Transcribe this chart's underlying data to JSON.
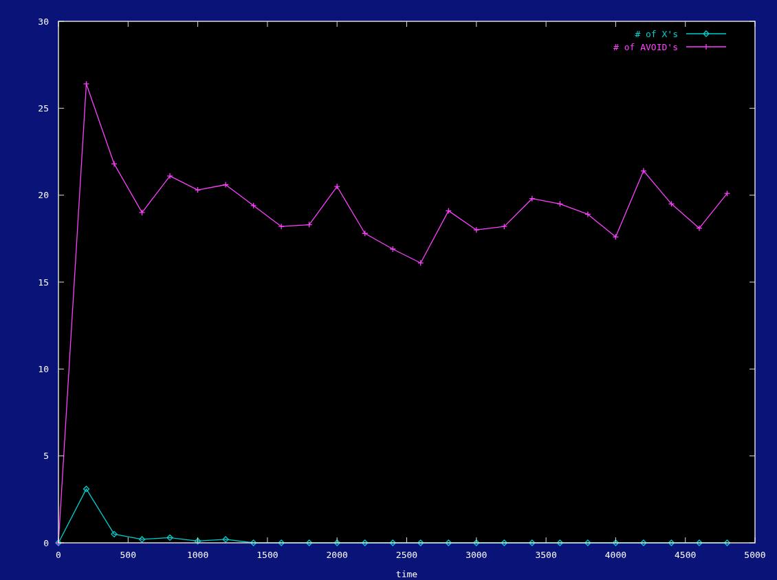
{
  "chart_data": {
    "type": "line",
    "xlabel": "time",
    "x": [
      0,
      200,
      400,
      600,
      800,
      1000,
      1200,
      1400,
      1600,
      1800,
      2000,
      2200,
      2400,
      2600,
      2800,
      3000,
      3200,
      3400,
      3600,
      3800,
      4000,
      4200,
      4400,
      4600,
      4800
    ],
    "series": [
      {
        "name": "# of X's",
        "color": "#00d0d0",
        "marker": "diamond",
        "values": [
          0,
          3.1,
          0.5,
          0.2,
          0.3,
          0.1,
          0.2,
          0,
          0,
          0,
          0,
          0,
          0,
          0,
          0,
          0,
          0,
          0,
          0,
          0,
          0,
          0,
          0,
          0,
          0
        ]
      },
      {
        "name": "# of AVOID's",
        "color": "#ff40ff",
        "marker": "cross",
        "values": [
          0,
          26.4,
          21.8,
          19.0,
          21.1,
          20.3,
          20.6,
          19.4,
          18.2,
          18.3,
          20.5,
          17.8,
          16.9,
          16.1,
          19.1,
          18.0,
          18.2,
          19.8,
          19.5,
          18.9,
          17.6,
          21.4,
          19.5,
          18.1,
          20.1
        ]
      }
    ],
    "xlim": [
      0,
      5000
    ],
    "xticks": [
      0,
      500,
      1000,
      1500,
      2000,
      2500,
      3000,
      3500,
      4000,
      4500,
      5000
    ],
    "ylim": [
      0,
      30
    ],
    "yticks": [
      0,
      5,
      10,
      15,
      20,
      25,
      30
    ],
    "legend": "top right"
  }
}
